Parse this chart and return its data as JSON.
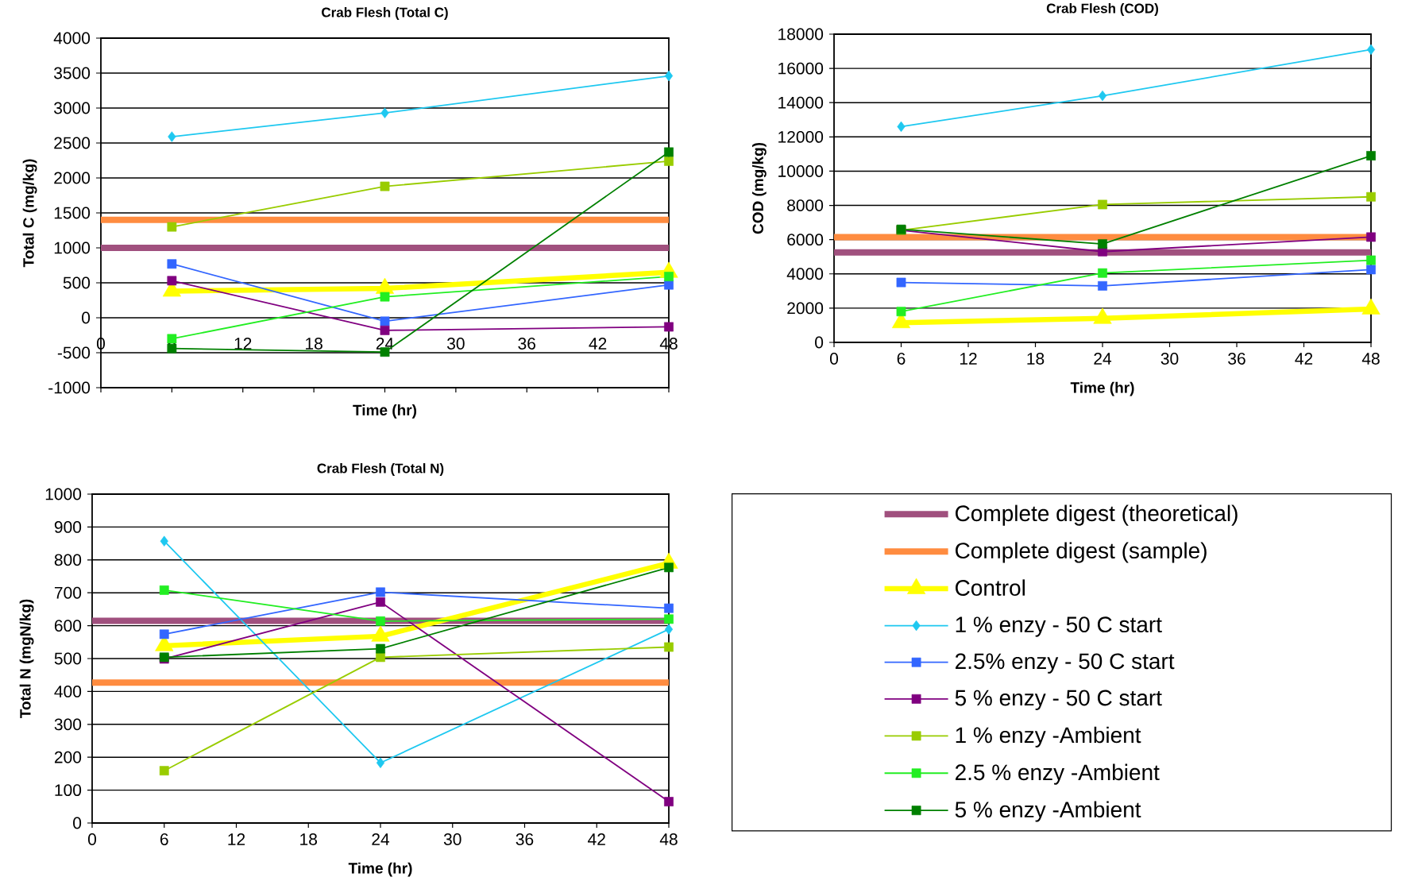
{
  "chart_data": [
    {
      "type": "line",
      "title": "Crab Flesh (Total C)",
      "xlabel": "Time (hr)",
      "ylabel": "Total C (mg/kg)",
      "xlim": [
        0,
        48
      ],
      "ylim": [
        -1000,
        4000
      ],
      "xticks": [
        0,
        6,
        12,
        18,
        24,
        30,
        36,
        42,
        48
      ],
      "yticks": [
        -1000,
        -500,
        0,
        500,
        1000,
        1500,
        2000,
        2500,
        3000,
        3500,
        4000
      ],
      "grid": "y",
      "series": [
        {
          "color": "#a0507e",
          "marker": "none",
          "x": [
            0,
            48
          ],
          "values": [
            1000,
            1000
          ]
        },
        {
          "color": "#ff8c40",
          "marker": "none",
          "x": [
            0,
            48
          ],
          "values": [
            1400,
            1400
          ]
        },
        {
          "color": "#ffff00",
          "marker": "triangle",
          "x": [
            6,
            24,
            48
          ],
          "values": [
            380,
            420,
            650
          ]
        },
        {
          "color": "#1ec8f0",
          "marker": "diamond",
          "x": [
            6,
            24,
            48
          ],
          "values": [
            2590,
            2930,
            3460
          ]
        },
        {
          "color": "#3366ff",
          "marker": "square",
          "x": [
            6,
            24,
            48
          ],
          "values": [
            770,
            -50,
            470
          ]
        },
        {
          "color": "#800080",
          "marker": "square",
          "x": [
            6,
            24,
            48
          ],
          "values": [
            530,
            -180,
            -130
          ]
        },
        {
          "color": "#99cc00",
          "marker": "square",
          "x": [
            6,
            24,
            48
          ],
          "values": [
            1300,
            1880,
            2240
          ]
        },
        {
          "color": "#22ee22",
          "marker": "square",
          "x": [
            6,
            24,
            48
          ],
          "values": [
            -300,
            300,
            590
          ]
        },
        {
          "color": "#008000",
          "marker": "square",
          "x": [
            6,
            24,
            48
          ],
          "values": [
            -440,
            -490,
            2370
          ]
        }
      ]
    },
    {
      "type": "line",
      "title": "Crab Flesh (COD)",
      "xlabel": "Time (hr)",
      "ylabel": "COD (mg/kg)",
      "xlim": [
        0,
        48
      ],
      "ylim": [
        0,
        18000
      ],
      "xticks": [
        0,
        6,
        12,
        18,
        24,
        30,
        36,
        42,
        48
      ],
      "yticks": [
        0,
        2000,
        4000,
        6000,
        8000,
        10000,
        12000,
        14000,
        16000,
        18000
      ],
      "grid": "y",
      "series": [
        {
          "color": "#a0507e",
          "marker": "none",
          "x": [
            0,
            48
          ],
          "values": [
            5250,
            5250
          ]
        },
        {
          "color": "#ff8c40",
          "marker": "none",
          "x": [
            0,
            48
          ],
          "values": [
            6150,
            6150
          ]
        },
        {
          "color": "#ffff00",
          "marker": "triangle",
          "x": [
            6,
            24,
            48
          ],
          "values": [
            1150,
            1400,
            1950
          ]
        },
        {
          "color": "#1ec8f0",
          "marker": "diamond",
          "x": [
            6,
            24,
            48
          ],
          "values": [
            12600,
            14400,
            17100
          ]
        },
        {
          "color": "#3366ff",
          "marker": "square",
          "x": [
            6,
            24,
            48
          ],
          "values": [
            3500,
            3300,
            4250
          ]
        },
        {
          "color": "#800080",
          "marker": "square",
          "x": [
            6,
            24,
            48
          ],
          "values": [
            6550,
            5300,
            6150
          ]
        },
        {
          "color": "#99cc00",
          "marker": "square",
          "x": [
            6,
            24,
            48
          ],
          "values": [
            6550,
            8050,
            8500
          ]
        },
        {
          "color": "#22ee22",
          "marker": "square",
          "x": [
            6,
            24,
            48
          ],
          "values": [
            1800,
            4050,
            4800
          ]
        },
        {
          "color": "#008000",
          "marker": "square",
          "x": [
            6,
            24,
            48
          ],
          "values": [
            6600,
            5750,
            10900
          ]
        }
      ]
    },
    {
      "type": "line",
      "title": "Crab Flesh (Total N)",
      "xlabel": "Time (hr)",
      "ylabel": "Total N (mgN/kg)",
      "xlim": [
        0,
        48
      ],
      "ylim": [
        0,
        1000
      ],
      "xticks": [
        0,
        6,
        12,
        18,
        24,
        30,
        36,
        42,
        48
      ],
      "yticks": [
        0,
        100,
        200,
        300,
        400,
        500,
        600,
        700,
        800,
        900,
        1000
      ],
      "grid": "y",
      "legend": "right",
      "series": [
        {
          "name": "Complete digest (theoretical)",
          "color": "#a0507e",
          "marker": "none",
          "x": [
            0,
            48
          ],
          "values": [
            615,
            615
          ]
        },
        {
          "name": "Complete digest (sample)",
          "color": "#ff8c40",
          "marker": "none",
          "x": [
            0,
            48
          ],
          "values": [
            427,
            427
          ]
        },
        {
          "name": "Control",
          "color": "#ffff00",
          "marker": "triangle",
          "x": [
            6,
            24,
            48
          ],
          "values": [
            539,
            568,
            790
          ]
        },
        {
          "name": "1 % enzy - 50 C start",
          "color": "#1ec8f0",
          "marker": "diamond",
          "x": [
            6,
            24,
            48
          ],
          "values": [
            857,
            183,
            589
          ]
        },
        {
          "name": "2.5% enzy - 50 C start",
          "color": "#3366ff",
          "marker": "square",
          "x": [
            6,
            24,
            48
          ],
          "values": [
            574,
            702,
            653
          ]
        },
        {
          "name": "5 % enzy - 50 C start",
          "color": "#800080",
          "marker": "square",
          "x": [
            6,
            24,
            48
          ],
          "values": [
            499,
            672,
            65
          ]
        },
        {
          "name": "1 % enzy -Ambient",
          "color": "#99cc00",
          "marker": "square",
          "x": [
            6,
            24,
            48
          ],
          "values": [
            159,
            504,
            535
          ]
        },
        {
          "name": "2.5 % enzy -Ambient",
          "color": "#22ee22",
          "marker": "square",
          "x": [
            6,
            24,
            48
          ],
          "values": [
            708,
            614,
            620
          ]
        },
        {
          "name": "5 % enzy -Ambient",
          "color": "#008000",
          "marker": "square",
          "x": [
            6,
            24,
            48
          ],
          "values": [
            504,
            530,
            777
          ]
        }
      ]
    }
  ]
}
